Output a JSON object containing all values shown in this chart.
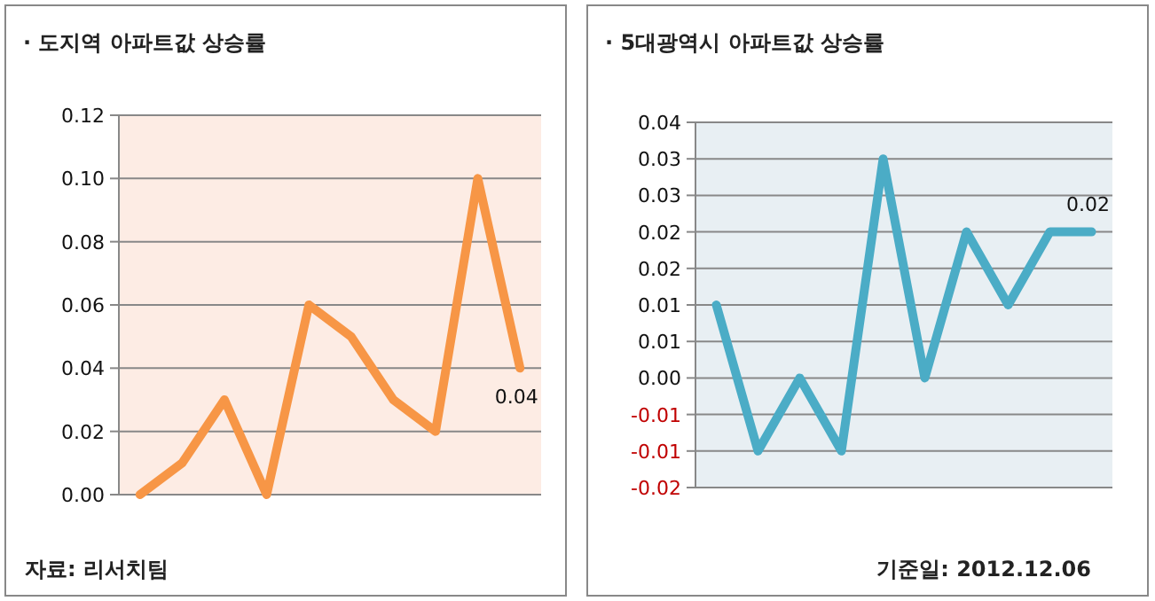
{
  "chart_data": [
    {
      "type": "line",
      "title": "· 도지역 아파트값 상승률",
      "categories": [
        null,
        null,
        null,
        null,
        null,
        null,
        null,
        null,
        null,
        null
      ],
      "series": [
        {
          "color": "#f79646",
          "values": [
            0.0,
            0.01,
            0.03,
            0.0,
            0.06,
            0.05,
            0.03,
            0.02,
            0.1,
            0.04
          ],
          "value_labels": [
            null,
            null,
            null,
            null,
            null,
            null,
            null,
            null,
            null,
            "0.04"
          ]
        }
      ],
      "ylim": [
        0,
        0.12
      ],
      "yticks": [
        {
          "value": 0,
          "label": "0.00"
        },
        {
          "value": 0.02,
          "label": "0.02"
        },
        {
          "value": 0.04,
          "label": "0.04"
        },
        {
          "value": 0.06,
          "label": "0.06"
        },
        {
          "value": 0.08,
          "label": "0.08"
        },
        {
          "value": 0.1,
          "label": "0.10"
        },
        {
          "value": 0.12,
          "label": "0.12"
        }
      ],
      "grid": "y",
      "annotations": [
        "자료: 리서치팀"
      ]
    },
    {
      "type": "line",
      "title": "· 5대광역시 아파트값 상승률",
      "categories": [
        null,
        null,
        null,
        null,
        null,
        null,
        null,
        null,
        null,
        null
      ],
      "series": [
        {
          "color": "#4bacc6",
          "values": [
            0.01,
            -0.01,
            0.0,
            -0.01,
            0.03,
            0.0,
            0.02,
            0.01,
            0.02,
            0.02
          ],
          "value_labels": [
            null,
            null,
            null,
            null,
            null,
            null,
            null,
            null,
            null,
            "0.02"
          ]
        }
      ],
      "ylim": [
        -0.015,
        0.035
      ],
      "yticks": [
        {
          "value": -0.015,
          "label": "-0.02"
        },
        {
          "value": -0.01,
          "label": "-0.01"
        },
        {
          "value": -0.005,
          "label": "-0.01"
        },
        {
          "value": 0,
          "label": "0.00"
        },
        {
          "value": 0.005,
          "label": "0.01"
        },
        {
          "value": 0.01,
          "label": "0.01"
        },
        {
          "value": 0.015,
          "label": "0.02"
        },
        {
          "value": 0.02,
          "label": "0.02"
        },
        {
          "value": 0.025,
          "label": "0.03"
        },
        {
          "value": 0.03,
          "label": "0.03"
        },
        {
          "value": 0.035,
          "label": "0.04"
        }
      ],
      "grid": "y",
      "annotations": [
        "기준일: 2012.12.06"
      ]
    }
  ]
}
